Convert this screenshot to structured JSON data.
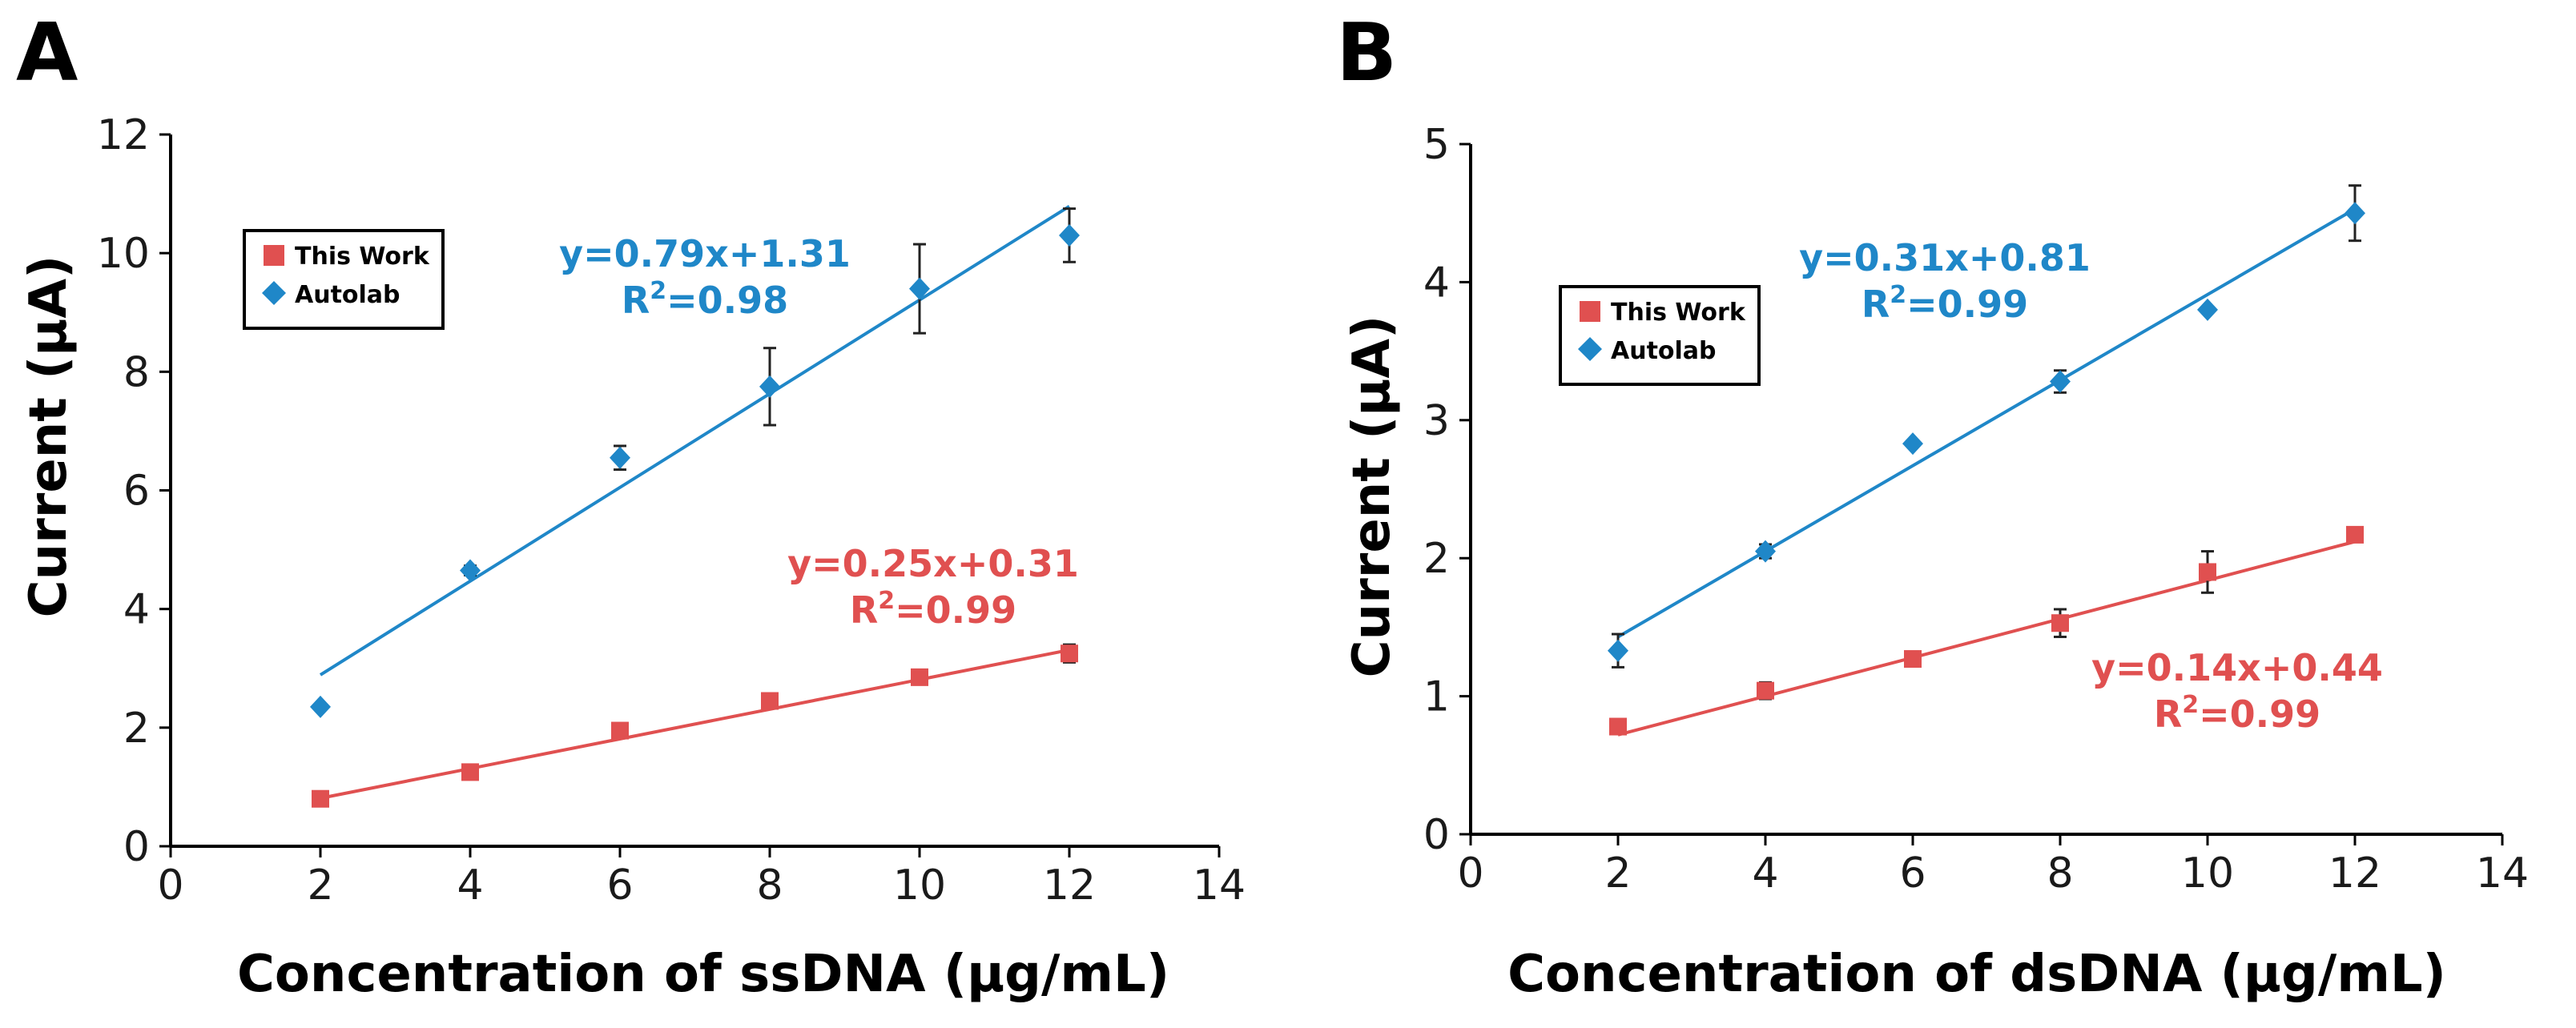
{
  "colors": {
    "this_work": "#e05050",
    "autolab": "#1f87c8",
    "fit_red": "#e05050",
    "fit_blue": "#1f87c8"
  },
  "chart_data": [
    {
      "type": "scatter",
      "panel_label": "A",
      "xlabel": "Concentration of ssDNA (µg/mL)",
      "ylabel": "Current (µA)",
      "xlim": [
        0,
        14
      ],
      "ylim": [
        0,
        12
      ],
      "xticks": [
        "0",
        "2",
        "4",
        "6",
        "8",
        "10",
        "12",
        "14"
      ],
      "yticks": [
        "0",
        "2",
        "4",
        "6",
        "8",
        "10",
        "12"
      ],
      "legend": [
        "This Work",
        "Autolab"
      ],
      "legend_position": "top-left",
      "series": [
        {
          "name": "This Work",
          "marker": "square",
          "x": [
            2,
            4,
            6,
            8,
            10,
            12
          ],
          "y": [
            0.8,
            1.25,
            1.95,
            2.45,
            2.85,
            3.25
          ],
          "err": [
            0.05,
            0.05,
            0.05,
            0.1,
            0.08,
            0.15
          ],
          "fit": {
            "slope": 0.25,
            "intercept": 0.31,
            "equation": "y=0.25x+0.31",
            "r2": "=0.99"
          }
        },
        {
          "name": "Autolab",
          "marker": "diamond",
          "x": [
            2,
            4,
            6,
            8,
            10,
            12
          ],
          "y": [
            2.35,
            4.65,
            6.55,
            7.75,
            9.4,
            10.3
          ],
          "err": [
            0.05,
            0.08,
            0.2,
            0.65,
            0.75,
            0.45
          ],
          "fit": {
            "slope": 0.79,
            "intercept": 1.31,
            "equation": "y=0.79x+1.31",
            "r2": "=0.98"
          }
        }
      ]
    },
    {
      "type": "scatter",
      "panel_label": "B",
      "xlabel": "Concentration of dsDNA (µg/mL)",
      "ylabel": "Current (µA)",
      "xlim": [
        0,
        14
      ],
      "ylim": [
        0,
        5
      ],
      "xticks": [
        "0",
        "2",
        "4",
        "6",
        "8",
        "10",
        "12",
        "14"
      ],
      "yticks": [
        "0",
        "1",
        "2",
        "3",
        "4",
        "5"
      ],
      "legend": [
        "This Work",
        "Autolab"
      ],
      "legend_position": "top-left",
      "series": [
        {
          "name": "This Work",
          "marker": "square",
          "x": [
            2,
            4,
            6,
            8,
            10,
            12
          ],
          "y": [
            0.78,
            1.04,
            1.27,
            1.53,
            1.9,
            2.17
          ],
          "err": [
            0.03,
            0.06,
            0.03,
            0.1,
            0.15,
            0.04
          ],
          "fit": {
            "slope": 0.14,
            "intercept": 0.44,
            "equation": "y=0.14x+0.44",
            "r2": "=0.99"
          }
        },
        {
          "name": "Autolab",
          "marker": "diamond",
          "x": [
            2,
            4,
            6,
            8,
            10,
            12
          ],
          "y": [
            1.33,
            2.05,
            2.83,
            3.28,
            3.8,
            4.5
          ],
          "err": [
            0.12,
            0.05,
            0.02,
            0.08,
            0.02,
            0.2
          ],
          "fit": {
            "slope": 0.31,
            "intercept": 0.81,
            "equation": "y=0.31x+0.81",
            "r2": "=0.99"
          }
        }
      ]
    }
  ]
}
